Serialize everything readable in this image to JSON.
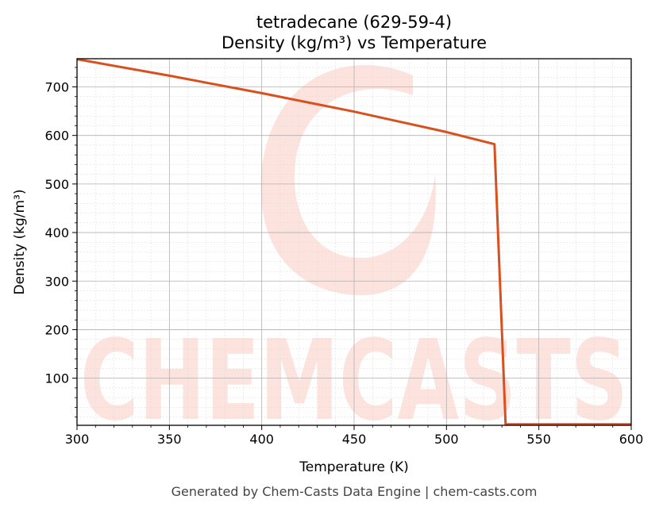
{
  "chart_data": {
    "type": "line",
    "title_line1": "tetradecane (629-59-4)",
    "title_line2": "Density (kg/m³) vs Temperature",
    "xlabel": "Temperature (K)",
    "ylabel": "Density (kg/m³)",
    "xlim": [
      300,
      600
    ],
    "ylim": [
      3,
      758
    ],
    "x_ticks": [
      300,
      350,
      400,
      450,
      500,
      550,
      600
    ],
    "y_ticks": [
      100,
      200,
      300,
      400,
      500,
      600,
      700
    ],
    "grid": true,
    "series": [
      {
        "color": "#d9501f",
        "points": [
          [
            300,
            757
          ],
          [
            350,
            723
          ],
          [
            400,
            687
          ],
          [
            450,
            649
          ],
          [
            500,
            607
          ],
          [
            526,
            582
          ],
          [
            532,
            5
          ],
          [
            600,
            5
          ]
        ]
      }
    ]
  },
  "footer": "Generated by Chem-Casts Data Engine | chem-casts.com",
  "watermark": {
    "text": "CHEMCASTS",
    "color": "#fde3de"
  }
}
